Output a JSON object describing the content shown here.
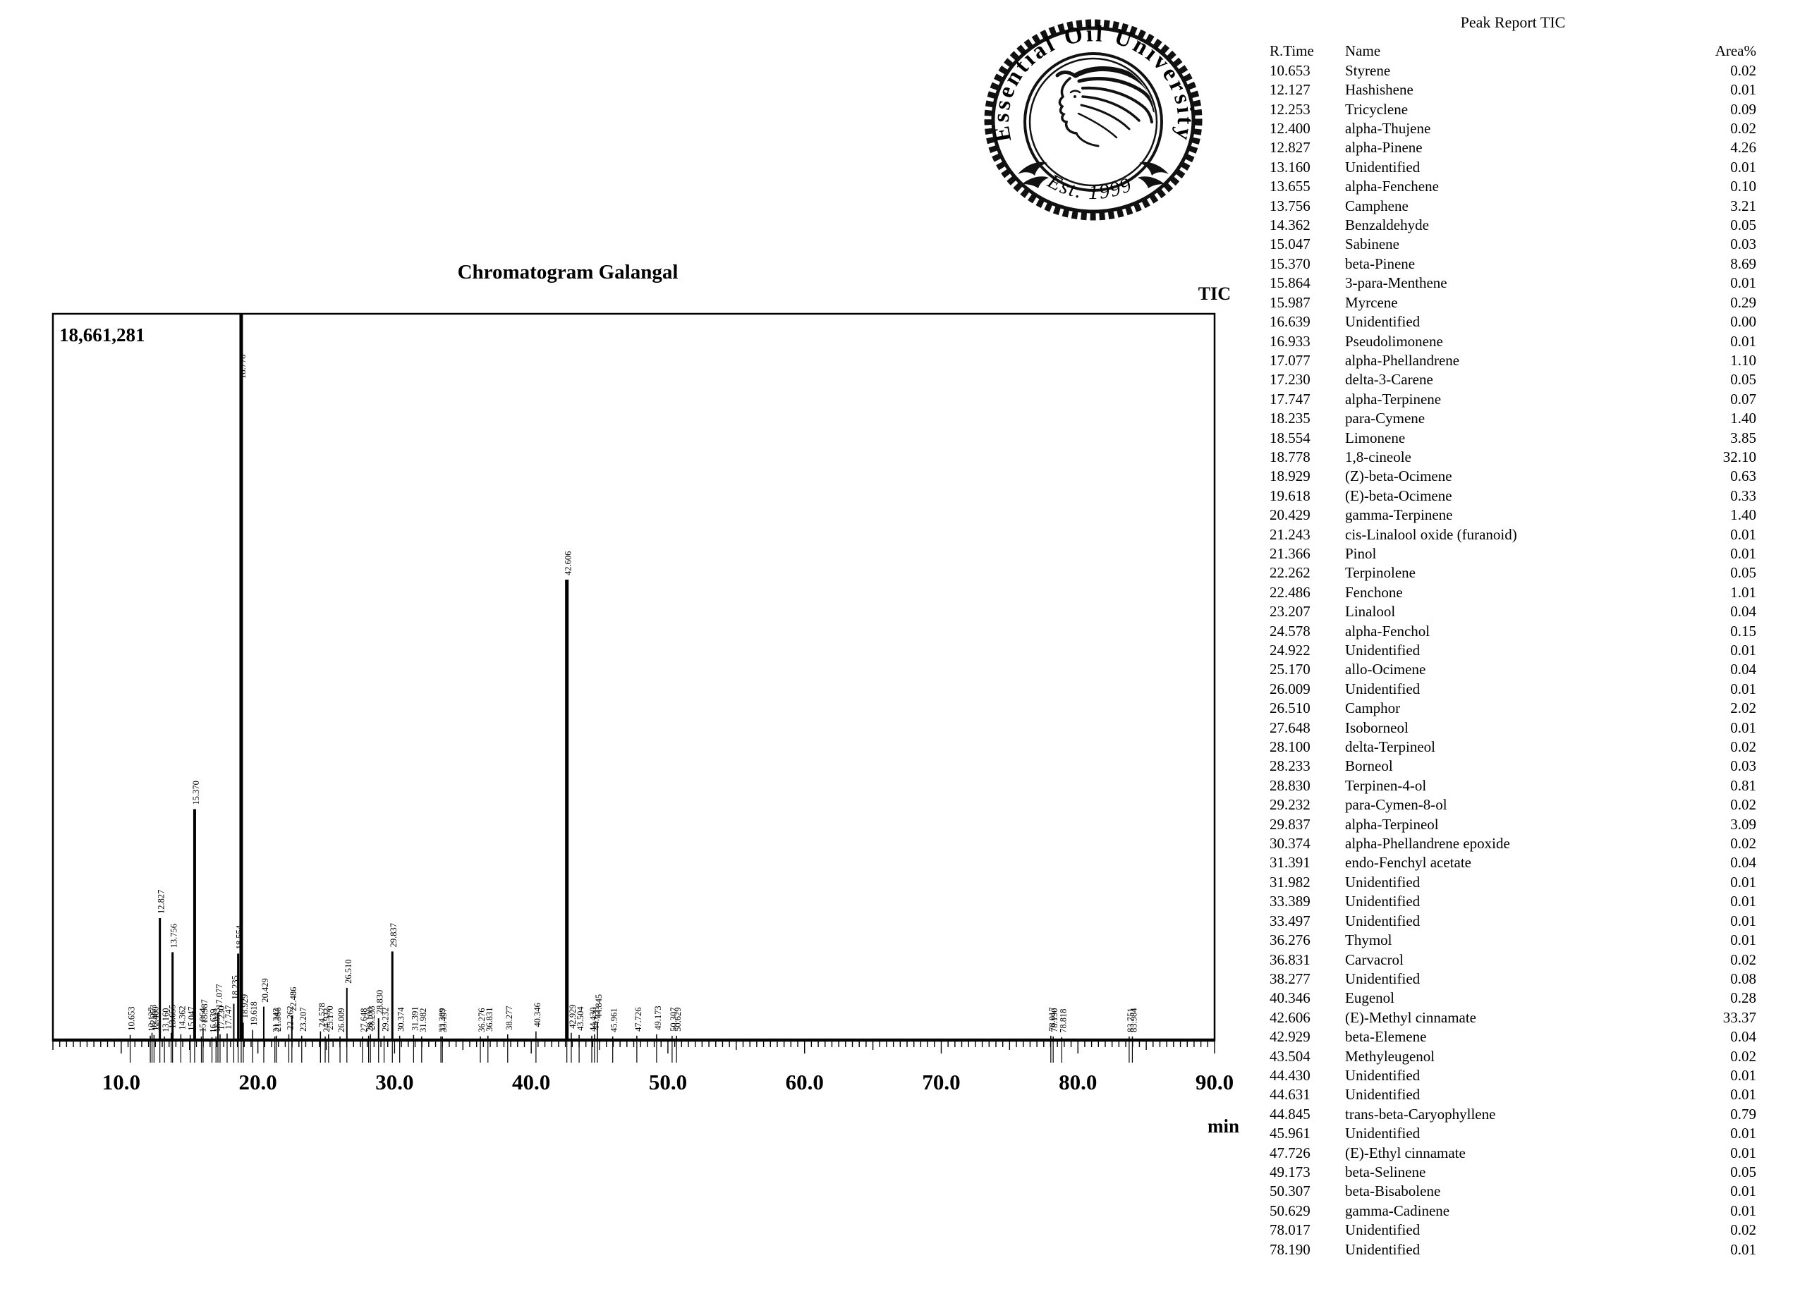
{
  "logo": {
    "arc_text": "Essential Oil University",
    "est_text": "Est. 1999"
  },
  "chart": {
    "title": "Chromatogram Galangal",
    "signal_label": "TIC",
    "y_max_label": "18,661,281",
    "x_axis": {
      "unit": "min",
      "min": 5.0,
      "max": 90.0,
      "tick_values": [
        10,
        20,
        30,
        40,
        50,
        60,
        70,
        80,
        90
      ],
      "tick_labels": [
        "10.0",
        "20.0",
        "30.0",
        "40.0",
        "50.0",
        "60.0",
        "70.0",
        "80.0",
        "90.0"
      ]
    }
  },
  "chart_data": {
    "type": "line",
    "subtype": "gc-chromatogram",
    "x_unit": "min",
    "x_range": [
      5.0,
      90.0
    ],
    "y_max_intensity": "18,661,281",
    "peaks": [
      {
        "rt": "10.653",
        "name": "Styrene",
        "area": "0.02",
        "h": 0.007
      },
      {
        "rt": "12.127",
        "name": "Hashishene",
        "area": "0.01",
        "h": 0.006
      },
      {
        "rt": "12.253",
        "name": "Tricyclene",
        "area": "0.09",
        "h": 0.01
      },
      {
        "rt": "12.400",
        "name": "alpha-Thujene",
        "area": "0.02",
        "h": 0.007
      },
      {
        "rt": "12.827",
        "name": "alpha-Pinene",
        "area": "4.26",
        "h": 0.168
      },
      {
        "rt": "13.160",
        "name": "Unidentified",
        "area": "0.01",
        "h": 0.005
      },
      {
        "rt": "13.655",
        "name": "alpha-Fenchene",
        "area": "0.10",
        "h": 0.01
      },
      {
        "rt": "13.756",
        "name": "Camphene",
        "area": "3.21",
        "h": 0.121
      },
      {
        "rt": "14.362",
        "name": "Benzaldehyde",
        "area": "0.05",
        "h": 0.008
      },
      {
        "rt": "15.047",
        "name": "Sabinene",
        "area": "0.03",
        "h": 0.007
      },
      {
        "rt": "15.370",
        "name": "beta-Pinene",
        "area": "8.69",
        "h": 0.318
      },
      {
        "rt": "15.864",
        "name": "3-para-Menthene",
        "area": "0.01",
        "h": 0.005
      },
      {
        "rt": "15.987",
        "name": "Myrcene",
        "area": "0.29",
        "h": 0.017
      },
      {
        "rt": "16.639",
        "name": "Unidentified",
        "area": "0.00",
        "h": 0.004
      },
      {
        "rt": "16.933",
        "name": "Pseudolimonene",
        "area": "0.01",
        "h": 0.005
      },
      {
        "rt": "17.077",
        "name": "alpha-Phellandrene",
        "area": "1.10",
        "h": 0.038
      },
      {
        "rt": "17.230",
        "name": "delta-3-Carene",
        "area": "0.05",
        "h": 0.008
      },
      {
        "rt": "17.747",
        "name": "alpha-Terpinene",
        "area": "0.07",
        "h": 0.009
      },
      {
        "rt": "18.235",
        "name": "para-Cymene",
        "area": "1.40",
        "h": 0.05
      },
      {
        "rt": "18.554",
        "name": "Limonene",
        "area": "3.85",
        "h": 0.119
      },
      {
        "rt": "18.778",
        "name": "1,8-cineole",
        "area": "32.10",
        "h": 1.0
      },
      {
        "rt": "18.929",
        "name": "(Z)-beta-Ocimene",
        "area": "0.63",
        "h": 0.024
      },
      {
        "rt": "19.618",
        "name": "(E)-beta-Ocimene",
        "area": "0.33",
        "h": 0.014
      },
      {
        "rt": "20.429",
        "name": "gamma-Terpinene",
        "area": "1.40",
        "h": 0.046
      },
      {
        "rt": "21.243",
        "name": "cis-Linalool oxide (furanoid)",
        "area": "0.01",
        "h": 0.005
      },
      {
        "rt": "21.366",
        "name": "Pinol",
        "area": "0.01",
        "h": 0.006
      },
      {
        "rt": "22.262",
        "name": "Terpinolene",
        "area": "0.05",
        "h": 0.008
      },
      {
        "rt": "22.486",
        "name": "Fenchone",
        "area": "1.01",
        "h": 0.034
      },
      {
        "rt": "23.207",
        "name": "Linalool",
        "area": "0.04",
        "h": 0.006
      },
      {
        "rt": "24.578",
        "name": "alpha-Fenchol",
        "area": "0.15",
        "h": 0.012
      },
      {
        "rt": "24.922",
        "name": "Unidentified",
        "area": "0.01",
        "h": 0.005
      },
      {
        "rt": "25.170",
        "name": "allo-Ocimene",
        "area": "0.04",
        "h": 0.008
      },
      {
        "rt": "26.009",
        "name": "Unidentified",
        "area": "0.01",
        "h": 0.005
      },
      {
        "rt": "26.510",
        "name": "Camphor",
        "area": "2.02",
        "h": 0.072
      },
      {
        "rt": "27.648",
        "name": "Isoborneol",
        "area": "0.01",
        "h": 0.005
      },
      {
        "rt": "28.100",
        "name": "delta-Terpineol",
        "area": "0.02",
        "h": 0.006
      },
      {
        "rt": "28.233",
        "name": "Borneol",
        "area": "0.03",
        "h": 0.008
      },
      {
        "rt": "28.830",
        "name": "Terpinen-4-ol",
        "area": "0.81",
        "h": 0.03
      },
      {
        "rt": "29.232",
        "name": "para-Cymen-8-ol",
        "area": "0.02",
        "h": 0.006
      },
      {
        "rt": "29.837",
        "name": "alpha-Terpineol",
        "area": "3.09",
        "h": 0.122
      },
      {
        "rt": "30.374",
        "name": "alpha-Phellandrene epoxide",
        "area": "0.02",
        "h": 0.006
      },
      {
        "rt": "31.391",
        "name": "endo-Fenchyl acetate",
        "area": "0.04",
        "h": 0.007
      },
      {
        "rt": "31.982",
        "name": "Unidentified",
        "area": "0.01",
        "h": 0.005
      },
      {
        "rt": "33.389",
        "name": "Unidentified",
        "area": "0.01",
        "h": 0.005
      },
      {
        "rt": "33.497",
        "name": "Unidentified",
        "area": "0.01",
        "h": 0.005
      },
      {
        "rt": "36.276",
        "name": "Thymol",
        "area": "0.01",
        "h": 0.005
      },
      {
        "rt": "36.831",
        "name": "Carvacrol",
        "area": "0.02",
        "h": 0.006
      },
      {
        "rt": "38.277",
        "name": "Unidentified",
        "area": "0.08",
        "h": 0.008
      },
      {
        "rt": "40.346",
        "name": "Eugenol",
        "area": "0.28",
        "h": 0.012
      },
      {
        "rt": "42.606",
        "name": "(E)-Methyl cinnamate",
        "area": "33.37",
        "h": 0.634
      },
      {
        "rt": "42.929",
        "name": "beta-Elemene",
        "area": "0.04",
        "h": 0.01
      },
      {
        "rt": "43.504",
        "name": "Methyleugenol",
        "area": "0.02",
        "h": 0.007
      },
      {
        "rt": "44.430",
        "name": "Unidentified",
        "area": "0.01",
        "h": 0.006
      },
      {
        "rt": "44.631",
        "name": "Unidentified",
        "area": "0.01",
        "h": 0.008
      },
      {
        "rt": "44.845",
        "name": "trans-beta-Caryophyllene",
        "area": "0.79",
        "h": 0.024
      },
      {
        "rt": "45.961",
        "name": "Unidentified",
        "area": "0.01",
        "h": 0.005
      },
      {
        "rt": "47.726",
        "name": "(E)-Ethyl cinnamate",
        "area": "0.01",
        "h": 0.006
      },
      {
        "rt": "49.173",
        "name": "beta-Selinene",
        "area": "0.05",
        "h": 0.008
      },
      {
        "rt": "50.307",
        "name": "beta-Bisabolene",
        "area": "0.01",
        "h": 0.006
      },
      {
        "rt": "50.629",
        "name": "gamma-Cadinene",
        "area": "0.01",
        "h": 0.006
      },
      {
        "rt": "78.017",
        "name": "Unidentified",
        "area": "0.02",
        "h": 0.006
      },
      {
        "rt": "78.190",
        "name": "Unidentified",
        "area": "0.01",
        "h": 0.005
      },
      {
        "rt": "78.818",
        "name": null,
        "area": null,
        "h": 0.004
      },
      {
        "rt": "83.751",
        "name": null,
        "area": null,
        "h": 0.005
      },
      {
        "rt": "83.984",
        "name": null,
        "area": null,
        "h": 0.005
      }
    ]
  },
  "report": {
    "title": "Peak Report TIC",
    "columns": [
      "R.Time",
      "Name",
      "Area%"
    ]
  }
}
